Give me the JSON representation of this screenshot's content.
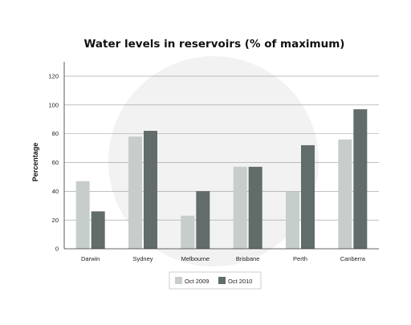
{
  "chart_data": {
    "type": "bar",
    "title": "Water levels in reservoirs (% of maximum)",
    "xlabel": "",
    "ylabel": "Percentage",
    "categories": [
      "Darwin",
      "Sydney",
      "Melbourne",
      "Brisbane",
      "Perth",
      "Canberra"
    ],
    "series": [
      {
        "name": "Oct 2009",
        "color": "#c7cdcb",
        "values": [
          47,
          78,
          23,
          57,
          40,
          76
        ]
      },
      {
        "name": "Oct 2010",
        "color": "#626d6b",
        "values": [
          26,
          82,
          40,
          57,
          72,
          97
        ]
      }
    ],
    "ylim": [
      0,
      120
    ],
    "yticks": [
      0,
      20,
      40,
      60,
      80,
      100,
      120
    ],
    "grid": true,
    "legend_position": "bottom-center"
  }
}
